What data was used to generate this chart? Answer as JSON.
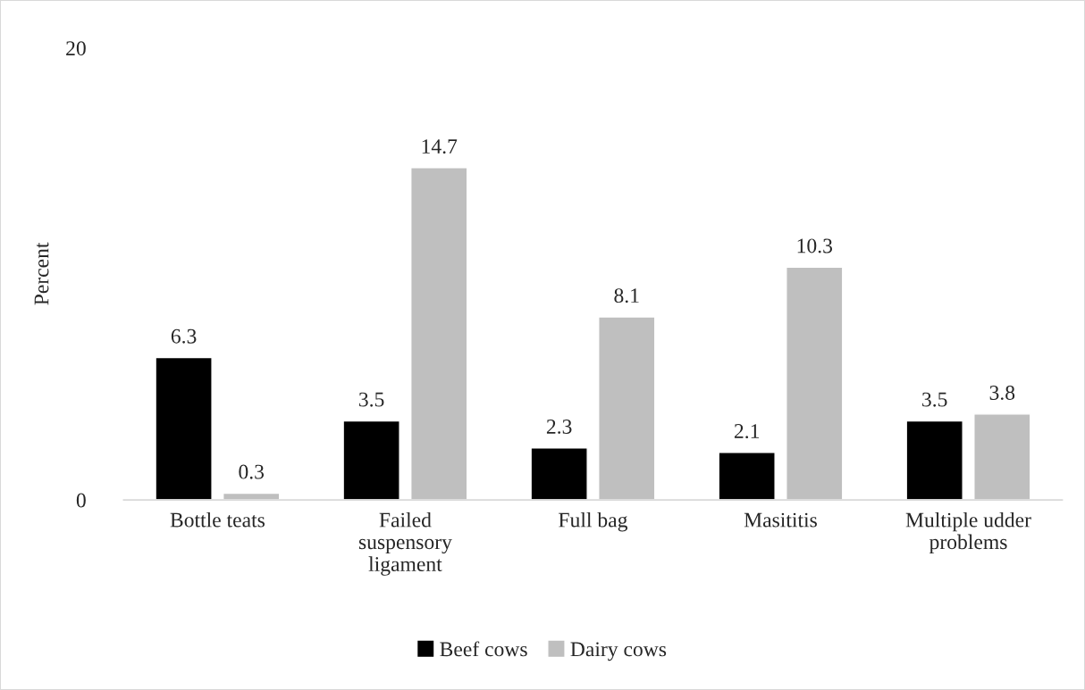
{
  "chart_data": {
    "type": "bar",
    "ylabel": "Percent",
    "categories": [
      "Bottle teats",
      "Failed\nsuspensory\nligament",
      "Full bag",
      "Masititis",
      "Multiple udder\nproblems"
    ],
    "series": [
      {
        "name": "Beef cows",
        "color": "#000000",
        "values": [
          6.3,
          3.5,
          2.3,
          2.1,
          3.5
        ]
      },
      {
        "name": "Dairy cows",
        "color": "#bfbfbf",
        "values": [
          0.3,
          14.7,
          8.1,
          10.3,
          3.8
        ]
      }
    ],
    "ylim": [
      0,
      20
    ],
    "yticks": [
      0,
      20
    ],
    "data_labels": true,
    "grid": false,
    "legend": "bottom"
  }
}
